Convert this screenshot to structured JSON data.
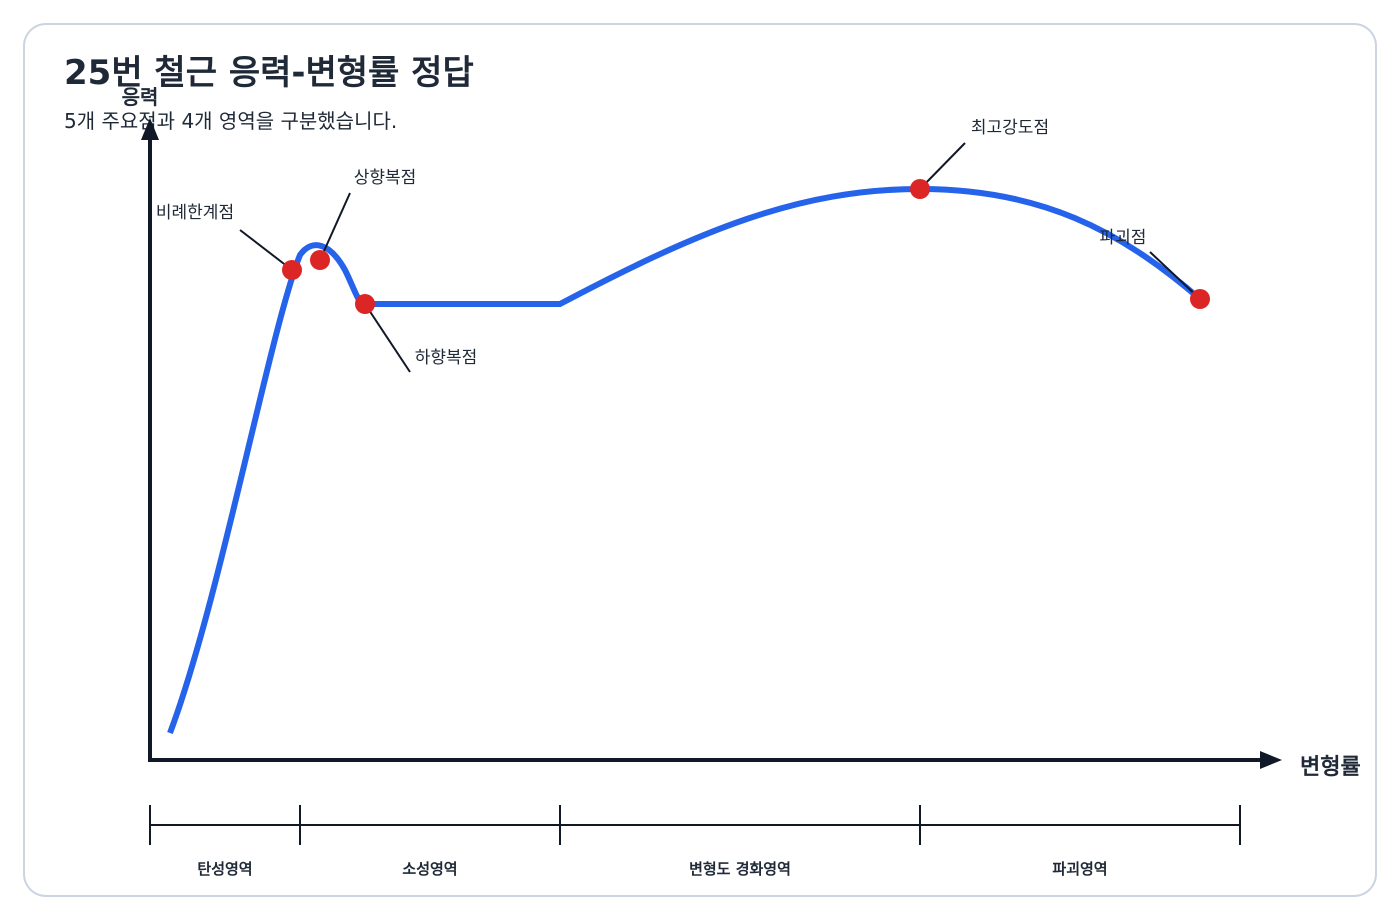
{
  "header": {
    "title": "25번 철근 응력-변형률 정답",
    "subtitle": "5개 주요점과 4개 영역을 구분했습니다."
  },
  "axes": {
    "y_label": "응력",
    "x_label": "변형률"
  },
  "points": [
    {
      "label": "비례한계점"
    },
    {
      "label": "상향복점"
    },
    {
      "label": "하향복점"
    },
    {
      "label": "최고강도점"
    },
    {
      "label": "파괴점"
    }
  ],
  "regions": [
    {
      "label": "탄성영역"
    },
    {
      "label": "소성영역"
    },
    {
      "label": "변형도 경화영역"
    },
    {
      "label": "파괴영역"
    }
  ]
}
